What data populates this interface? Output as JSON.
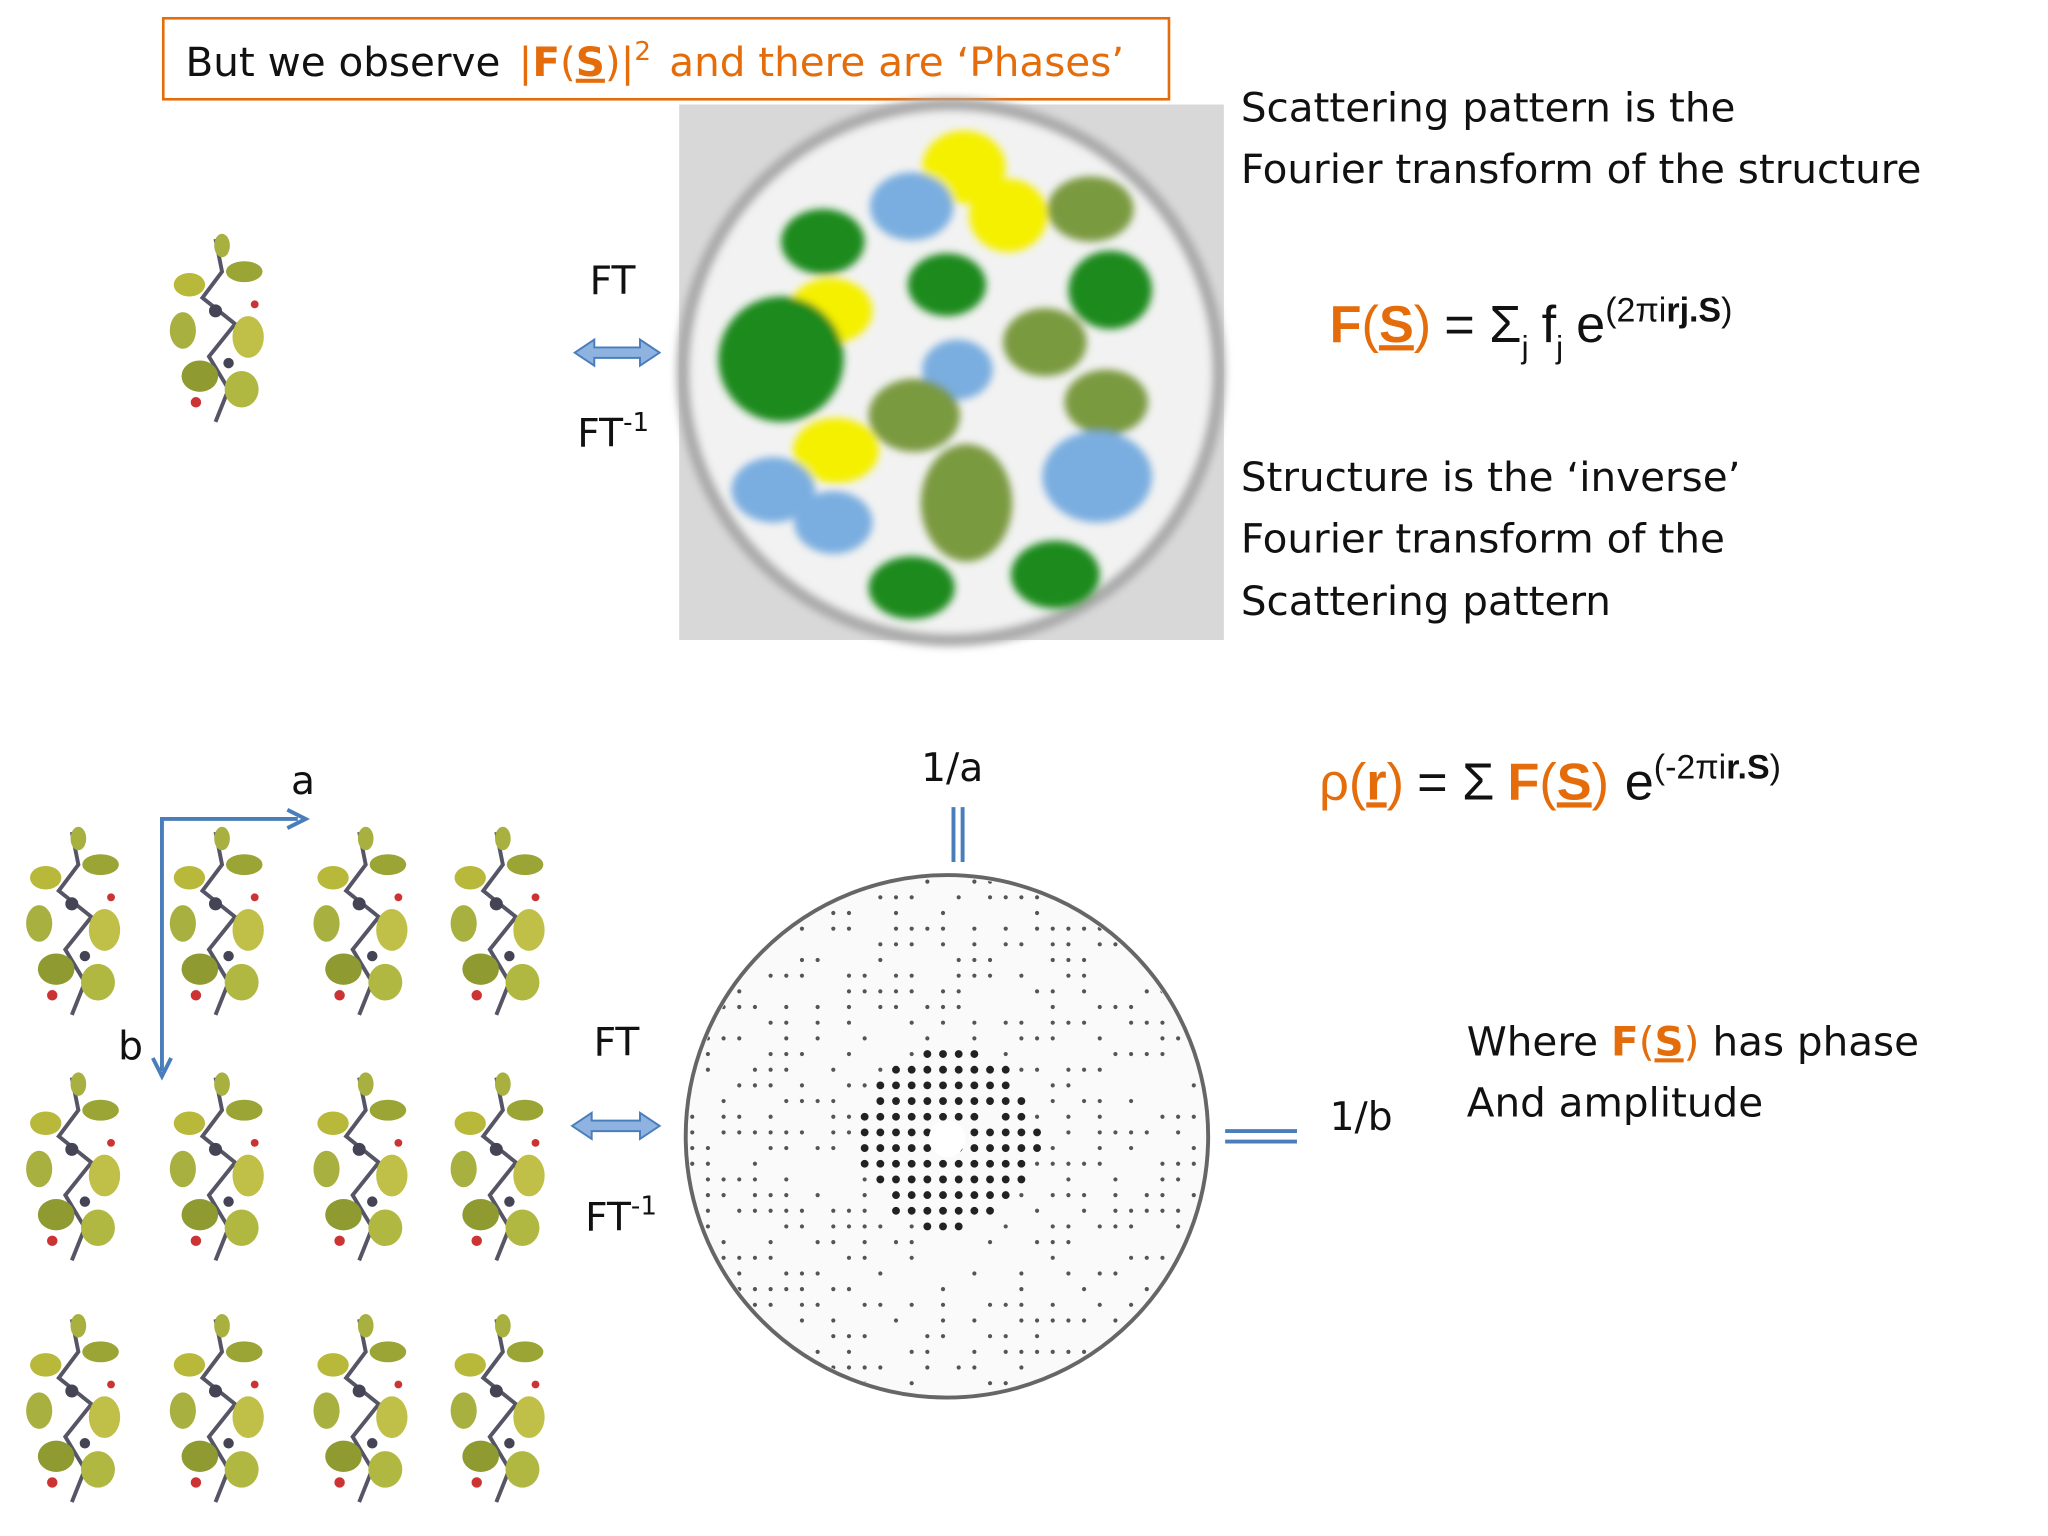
{
  "banner": {
    "lead": "But we observe",
    "bar_left": "|",
    "func": "F",
    "open": "(",
    "arg": "S",
    "close": ")",
    "bar_right": "|",
    "power": "2",
    "tail": "and there are ‘Phases’"
  },
  "top": {
    "ft": "FT",
    "ift": "FT",
    "ift_exp": "-1",
    "description": [
      "Scattering pattern is the",
      "Fourier transform of the structure"
    ],
    "formula": {
      "lhs_func": "F",
      "lhs_open": "(",
      "lhs_arg": "S",
      "lhs_close": ")",
      "equals": "= Σ",
      "sum_index": "j",
      "factor": "f",
      "factor_index": "j",
      "base": "e",
      "exp_lead": "(2πi",
      "exp_bold": "rj.S",
      "exp_close": ")"
    },
    "inverse": [
      "Structure is the ‘inverse’",
      "Fourier transform of the",
      "Scattering pattern"
    ]
  },
  "bottom": {
    "axis_a": "a",
    "axis_b": "b",
    "ft": "FT",
    "ift": "FT",
    "ift_exp": "-1",
    "recip_a": "1/a",
    "recip_b": "1/b",
    "formula": {
      "lhs_func": "ρ",
      "lhs_open": "(",
      "lhs_arg": "r",
      "lhs_close": ")",
      "equals": "= Σ",
      "func": "F",
      "open": "(",
      "arg": "S",
      "close": ")",
      "base": "e",
      "exp_lead": "(-2πi",
      "exp_bold": "r.S",
      "exp_close": ")"
    },
    "note": {
      "lead": "Where",
      "func": "F",
      "open": "(",
      "arg": "S",
      "close": ")",
      "tail": "has phase",
      "line2": "And amplitude"
    }
  }
}
